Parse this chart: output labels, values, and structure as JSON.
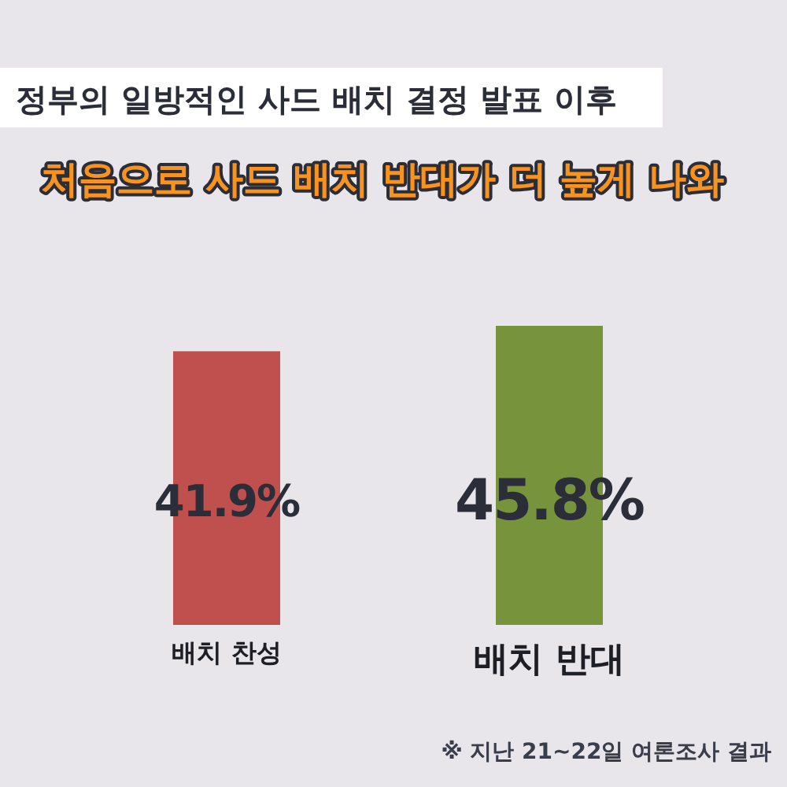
{
  "chart_data": {
    "type": "bar",
    "title": "정부의 일방적인 사드 배치 결정 발표 이후",
    "subtitle": "처음으로 사드 배치 반대가 더 높게 나와",
    "categories": [
      "배치 찬성",
      "배치 반대"
    ],
    "values": [
      41.9,
      45.8
    ],
    "colors": [
      "#c0504d",
      "#77933c"
    ],
    "value_labels": [
      "41.9%",
      "45.8%"
    ],
    "annotations": [
      "※ 지난 21~22일 여론조사 결과"
    ]
  }
}
